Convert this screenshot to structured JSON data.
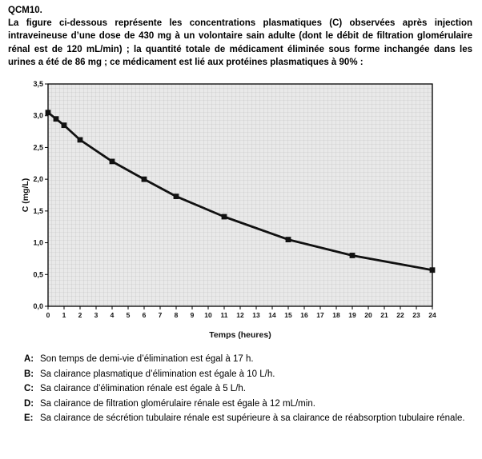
{
  "page": {
    "title": "QCM10.",
    "intro": "La figure ci-dessous représente les concentrations plasmatiques (C) observées après injection intraveineuse d’une dose de 430 mg à un volontaire sain adulte (dont le débit de filtration glomérulaire rénal est de 120 mL/min) ; la quantité totale de médicament éliminée sous forme inchangée dans les urines a été de 86 mg ; ce médicament est lié aux protéines plasmatiques à 90% :"
  },
  "chart_data": {
    "type": "line",
    "title": "",
    "xlabel": "Temps (heures)",
    "ylabel": "C (mg/L)",
    "xlim": [
      0,
      24
    ],
    "ylim": [
      0,
      3.5
    ],
    "x_tick_labels": [
      "0",
      "1",
      "2",
      "3",
      "4",
      "5",
      "6",
      "7",
      "8",
      "9",
      "10",
      "11",
      "12",
      "13",
      "14",
      "15",
      "16",
      "17",
      "18",
      "19",
      "20",
      "21",
      "22",
      "23",
      "24"
    ],
    "y_ticks": [
      0,
      0.5,
      1.0,
      1.5,
      2.0,
      2.5,
      3.0,
      3.5
    ],
    "y_tick_labels": [
      "0,0",
      "0,5",
      "1,0",
      "1,5",
      "2,0",
      "2,5",
      "3,0",
      "3,5"
    ],
    "grid": true,
    "legend": "none",
    "marker": "square",
    "series": [
      {
        "name": "C plasmatique",
        "x": [
          0,
          0.5,
          1,
          2,
          4,
          6,
          8,
          11,
          15,
          19,
          24
        ],
        "y": [
          3.05,
          2.95,
          2.85,
          2.62,
          2.28,
          2.0,
          1.73,
          1.41,
          1.05,
          0.8,
          0.57
        ]
      }
    ],
    "plot_bg": "#e9e9e9",
    "grid_color": "#bdbdbd",
    "line_color": "#111111",
    "frame_color": "#000000"
  },
  "options": [
    {
      "label": "A:",
      "text": "Son temps de demi-vie d’élimination est égal à 17 h."
    },
    {
      "label": "B:",
      "text": "Sa clairance plasmatique d’élimination est égale à 10 L/h."
    },
    {
      "label": "C:",
      "text": "Sa clairance d’élimination rénale est égale à 5 L/h."
    },
    {
      "label": "D:",
      "text": "Sa clairance de filtration glomérulaire rénale est égale à 12 mL/min."
    },
    {
      "label": "E:",
      "text": "Sa clairance de sécrétion tubulaire rénale est supérieure à sa clairance de réabsorption tubulaire rénale."
    }
  ]
}
